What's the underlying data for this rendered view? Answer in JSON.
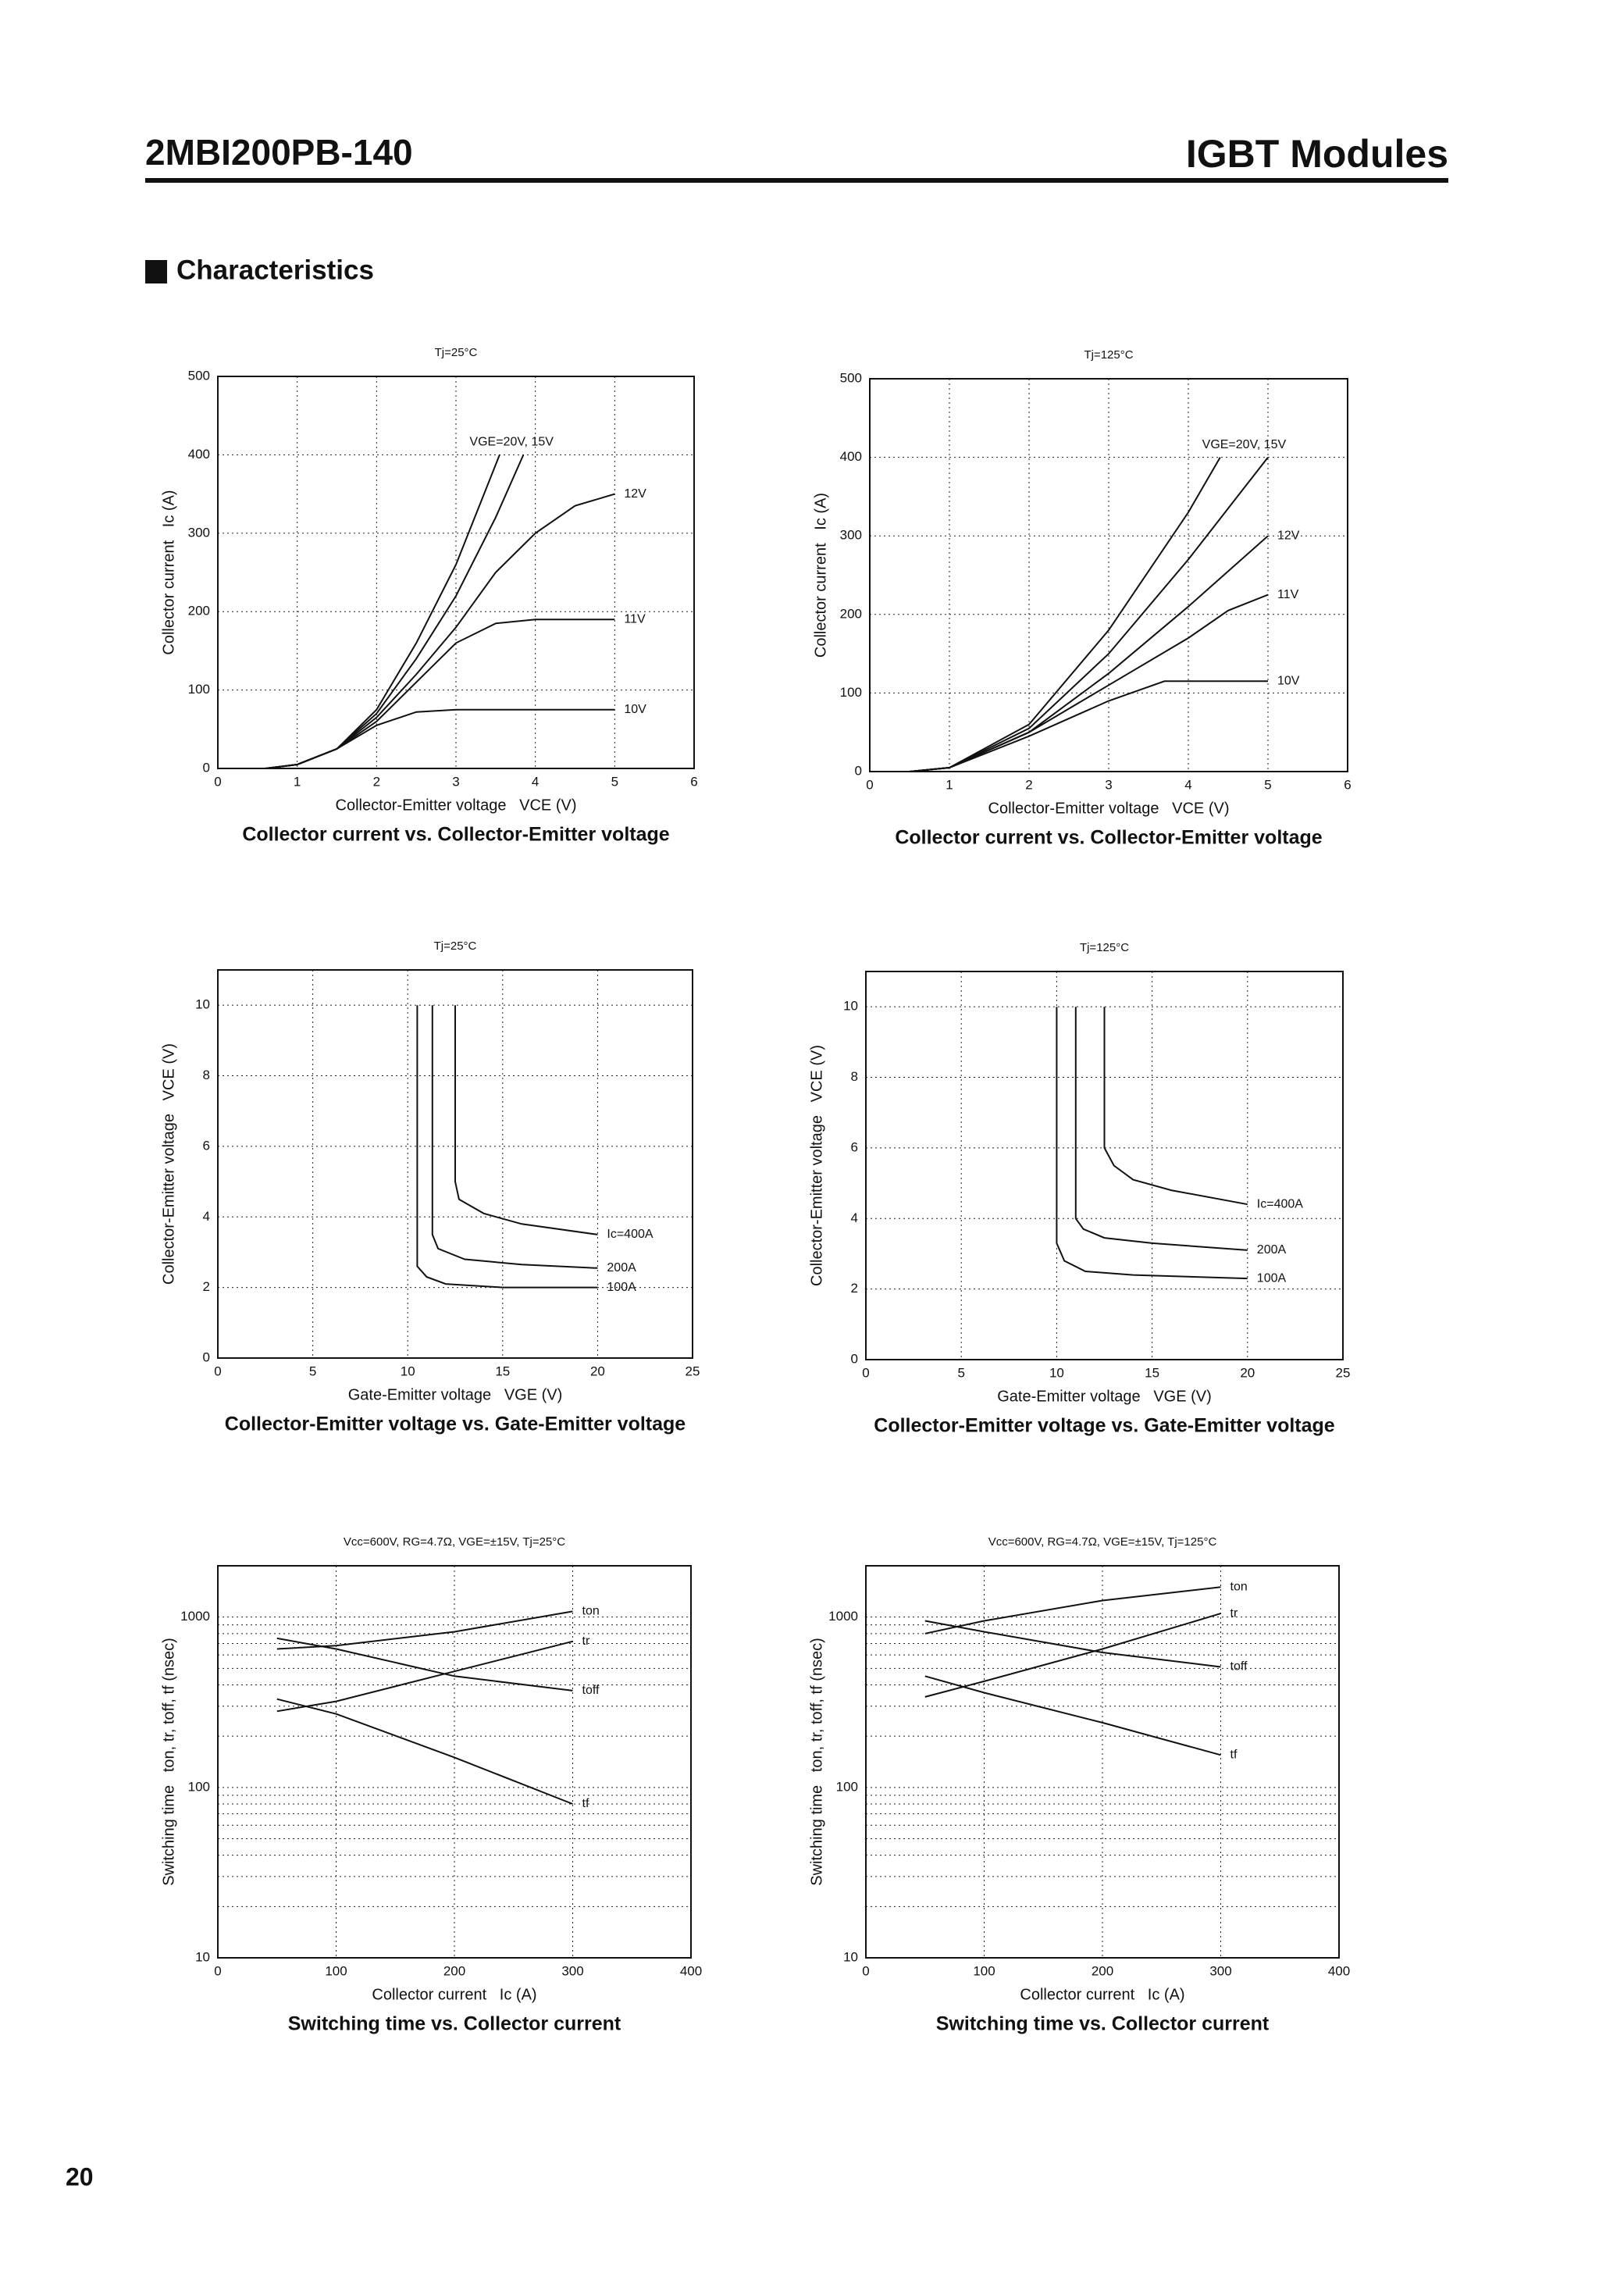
{
  "header": {
    "part": "2MBI200PB-140",
    "title": "IGBT Modules"
  },
  "section": "Characteristics",
  "page_number": "20",
  "chart_data": [
    {
      "type": "line",
      "subtitle": "Tj=25°C",
      "title": "Collector current vs. Collector-Emitter voltage",
      "xlabel": "Collector-Emitter voltage   VCE (V)",
      "ylabel": "Collector current   Ic (A)",
      "xlim": [
        0,
        6
      ],
      "ylim": [
        0,
        500
      ],
      "xticks": [
        0,
        1,
        2,
        3,
        4,
        5,
        6
      ],
      "yticks": [
        0,
        100,
        200,
        300,
        400,
        500
      ],
      "grid": true,
      "color": "#111111",
      "series": [
        {
          "name": "VGE=20V, 15V",
          "x": [
            0.6,
            1,
            1.5,
            2,
            2.5,
            3,
            3.55
          ],
          "values": [
            0,
            5,
            25,
            75,
            160,
            260,
            400
          ]
        },
        {
          "x": [
            0.6,
            1,
            1.5,
            2,
            2.5,
            3,
            3.5,
            3.85
          ],
          "values": [
            0,
            5,
            25,
            70,
            140,
            220,
            320,
            400
          ]
        },
        {
          "name": "12V",
          "x": [
            0.6,
            1,
            1.5,
            2,
            2.5,
            3,
            3.5,
            4,
            4.5,
            5
          ],
          "values": [
            0,
            5,
            25,
            65,
            120,
            180,
            250,
            300,
            335,
            350
          ]
        },
        {
          "name": "11V",
          "x": [
            0.6,
            1,
            1.5,
            2,
            2.5,
            3,
            3.5,
            4,
            5
          ],
          "values": [
            0,
            5,
            25,
            60,
            110,
            160,
            185,
            190,
            190
          ]
        },
        {
          "name": "10V",
          "x": [
            0.6,
            1,
            1.5,
            2,
            2.5,
            3,
            5
          ],
          "values": [
            0,
            5,
            25,
            55,
            72,
            75,
            75
          ]
        }
      ]
    },
    {
      "type": "line",
      "subtitle": "Tj=125°C",
      "title": "Collector current vs. Collector-Emitter voltage",
      "xlabel": "Collector-Emitter voltage   VCE (V)",
      "ylabel": "Collector current   Ic (A)",
      "xlim": [
        0,
        6
      ],
      "ylim": [
        0,
        500
      ],
      "xticks": [
        0,
        1,
        2,
        3,
        4,
        5,
        6
      ],
      "yticks": [
        0,
        100,
        200,
        300,
        400,
        500
      ],
      "grid": true,
      "color": "#111111",
      "series": [
        {
          "name": "VGE=20V, 15V",
          "x": [
            0.5,
            1,
            2,
            3,
            4,
            4.4
          ],
          "values": [
            0,
            5,
            60,
            180,
            330,
            400
          ]
        },
        {
          "x": [
            0.5,
            1,
            2,
            3,
            4,
            5
          ],
          "values": [
            0,
            5,
            55,
            150,
            270,
            400
          ]
        },
        {
          "name": "12V",
          "x": [
            0.5,
            1,
            2,
            3,
            4,
            5
          ],
          "values": [
            0,
            5,
            50,
            125,
            210,
            300
          ]
        },
        {
          "name": "11V",
          "x": [
            0.5,
            1,
            2,
            3,
            4,
            4.5,
            5
          ],
          "values": [
            0,
            5,
            50,
            110,
            170,
            205,
            225
          ]
        },
        {
          "name": "10V",
          "x": [
            0.5,
            1,
            2,
            3,
            3.7,
            5
          ],
          "values": [
            0,
            5,
            45,
            90,
            115,
            115
          ]
        }
      ]
    },
    {
      "type": "line",
      "subtitle": "Tj=25°C",
      "title": "Collector-Emitter voltage vs. Gate-Emitter voltage",
      "xlabel": "Gate-Emitter voltage   VGE (V)",
      "ylabel": "Collector-Emitter voltage   VCE (V)",
      "xlim": [
        0,
        25
      ],
      "ylim": [
        0,
        11
      ],
      "xticks": [
        0,
        5,
        10,
        15,
        20,
        25
      ],
      "yticks": [
        0,
        2,
        4,
        6,
        8,
        10
      ],
      "grid": true,
      "color": "#111111",
      "series": [
        {
          "name": "Ic=400A",
          "x": [
            12.5,
            12.5,
            12.7,
            14,
            16,
            20
          ],
          "values": [
            10,
            5,
            4.5,
            4.1,
            3.8,
            3.5
          ]
        },
        {
          "name": "200A",
          "x": [
            11.3,
            11.3,
            11.6,
            13,
            16,
            20
          ],
          "values": [
            10,
            3.5,
            3.1,
            2.8,
            2.65,
            2.55
          ]
        },
        {
          "name": "100A",
          "x": [
            10.5,
            10.5,
            11,
            12,
            15,
            20
          ],
          "values": [
            10,
            2.6,
            2.3,
            2.1,
            2.0,
            2.0
          ]
        }
      ]
    },
    {
      "type": "line",
      "subtitle": "Tj=125°C",
      "title": "Collector-Emitter voltage vs. Gate-Emitter voltage",
      "xlabel": "Gate-Emitter voltage   VGE (V)",
      "ylabel": "Collector-Emitter voltage   VCE (V)",
      "xlim": [
        0,
        25
      ],
      "ylim": [
        0,
        11
      ],
      "xticks": [
        0,
        5,
        10,
        15,
        20,
        25
      ],
      "yticks": [
        0,
        2,
        4,
        6,
        8,
        10
      ],
      "grid": true,
      "color": "#111111",
      "series": [
        {
          "name": "Ic=400A",
          "x": [
            12.5,
            12.5,
            13,
            14,
            16,
            20
          ],
          "values": [
            10,
            6,
            5.5,
            5.1,
            4.8,
            4.4
          ]
        },
        {
          "name": "200A",
          "x": [
            11,
            11,
            11.4,
            12.5,
            15,
            20
          ],
          "values": [
            10,
            4,
            3.7,
            3.45,
            3.3,
            3.1
          ]
        },
        {
          "name": "100A",
          "x": [
            10,
            10,
            10.4,
            11.5,
            14,
            20
          ],
          "values": [
            10,
            3.3,
            2.8,
            2.5,
            2.4,
            2.3
          ]
        }
      ]
    },
    {
      "type": "line",
      "subtitle": "Vcc=600V, RG=4.7Ω, VGE=±15V, Tj=25°C",
      "title": "Switching time vs. Collector current",
      "xlabel": "Collector current   Ic (A)",
      "ylabel": "Switching time   ton, tr, toff, tf (nsec)",
      "log_y": true,
      "xlim": [
        0,
        400
      ],
      "ylim": [
        10,
        2000
      ],
      "xticks": [
        0,
        100,
        200,
        300,
        400
      ],
      "yticks": [
        10,
        100,
        1000
      ],
      "yticks_minor": [
        20,
        30,
        40,
        50,
        60,
        70,
        80,
        90,
        200,
        300,
        400,
        500,
        600,
        700,
        800,
        900
      ],
      "grid": true,
      "color": "#111111",
      "series": [
        {
          "name": "ton",
          "x": [
            50,
            100,
            200,
            300
          ],
          "values": [
            650,
            680,
            820,
            1080
          ]
        },
        {
          "name": "tr",
          "x": [
            50,
            100,
            200,
            300
          ],
          "values": [
            280,
            320,
            480,
            720
          ]
        },
        {
          "name": "toff",
          "x": [
            50,
            100,
            200,
            300
          ],
          "values": [
            750,
            650,
            450,
            370
          ]
        },
        {
          "name": "tf",
          "x": [
            50,
            100,
            200,
            300
          ],
          "values": [
            330,
            270,
            150,
            80
          ]
        }
      ]
    },
    {
      "type": "line",
      "subtitle": "Vcc=600V, RG=4.7Ω, VGE=±15V, Tj=125°C",
      "title": "Switching time vs. Collector current",
      "xlabel": "Collector current   Ic (A)",
      "ylabel": "Switching time   ton, tr, toff, tf (nsec)",
      "log_y": true,
      "xlim": [
        0,
        400
      ],
      "ylim": [
        10,
        2000
      ],
      "xticks": [
        0,
        100,
        200,
        300,
        400
      ],
      "yticks": [
        10,
        100,
        1000
      ],
      "yticks_minor": [
        20,
        30,
        40,
        50,
        60,
        70,
        80,
        90,
        200,
        300,
        400,
        500,
        600,
        700,
        800,
        900
      ],
      "grid": true,
      "color": "#111111",
      "series": [
        {
          "name": "ton",
          "x": [
            50,
            100,
            200,
            300
          ],
          "values": [
            800,
            950,
            1250,
            1500
          ]
        },
        {
          "name": "tr",
          "x": [
            50,
            100,
            200,
            300
          ],
          "values": [
            340,
            420,
            650,
            1050
          ]
        },
        {
          "name": "toff",
          "x": [
            50,
            100,
            200,
            300
          ],
          "values": [
            950,
            820,
            620,
            510
          ]
        },
        {
          "name": "tf",
          "x": [
            50,
            100,
            200,
            300
          ],
          "values": [
            450,
            360,
            240,
            155
          ]
        }
      ]
    }
  ]
}
